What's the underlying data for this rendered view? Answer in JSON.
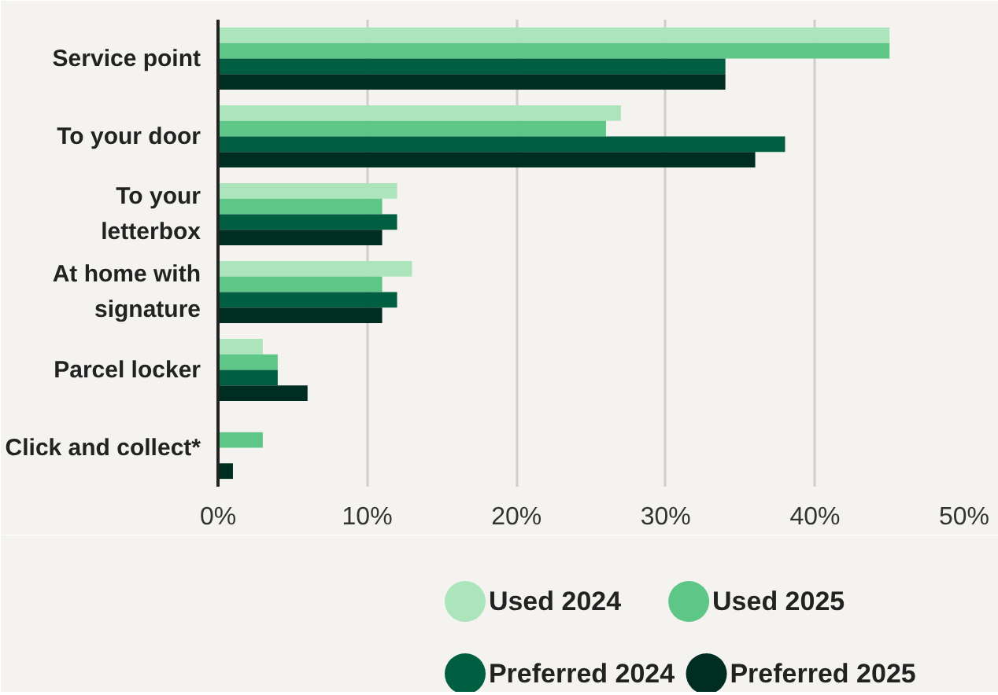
{
  "chart_data": {
    "type": "bar",
    "orientation": "horizontal",
    "categories": [
      "Service point",
      "To your door",
      "To your\nletterbox",
      "At home with\nsignature",
      "Parcel locker",
      "Click and collect*"
    ],
    "series": [
      {
        "name": "Used 2024",
        "color": "#ace5bb",
        "values": [
          45,
          27,
          12,
          13,
          3,
          null
        ]
      },
      {
        "name": "Used 2025",
        "color": "#5ec687",
        "values": [
          45,
          26,
          11,
          11,
          4,
          3
        ]
      },
      {
        "name": "Preferred 2024",
        "color": "#005f41",
        "values": [
          34,
          38,
          12,
          12,
          4,
          null
        ]
      },
      {
        "name": "Preferred 2025",
        "color": "#002d22",
        "values": [
          34,
          36,
          11,
          11,
          6,
          1
        ]
      }
    ],
    "xlim": [
      0,
      50
    ],
    "xticks": [
      {
        "value": 0,
        "label": "0%"
      },
      {
        "value": 10,
        "label": "10%"
      },
      {
        "value": 20,
        "label": "20%"
      },
      {
        "value": 30,
        "label": "30%"
      },
      {
        "value": 40,
        "label": "40%"
      },
      {
        "value": 50,
        "label": "50%"
      }
    ],
    "grid": "x",
    "legend": "bottom"
  }
}
